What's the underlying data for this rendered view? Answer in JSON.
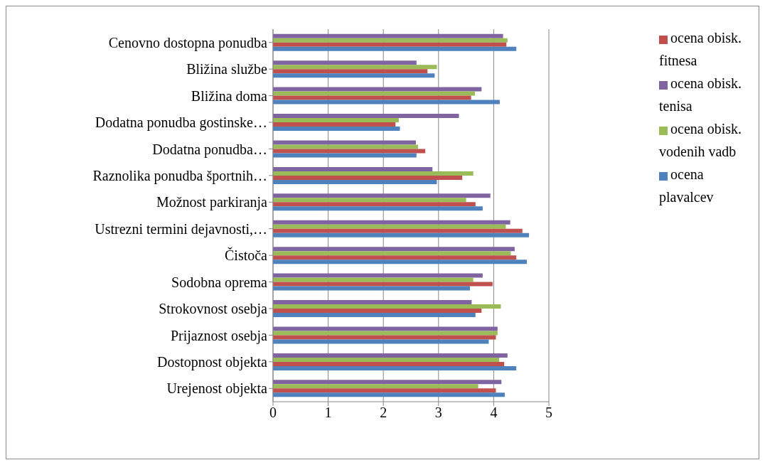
{
  "chart_data": {
    "type": "bar",
    "orientation": "horizontal",
    "categories": [
      "Cenovno dostopna ponudba",
      "Bližina službe",
      "Bližina doma",
      "Dodatna ponudba gostinske…",
      "Dodatna ponudba…",
      "Raznolika  ponudba športnih…",
      "Možnost parkiranja",
      "Ustrezni termini dejavnosti,…",
      "Čistoča",
      "Sodobna oprema",
      "Strokovnost osebja",
      "Prijaznost osebja",
      "Dostopnost objekta",
      "Urejenost objekta"
    ],
    "series": [
      {
        "name": "ocena obisk. tenisa",
        "color": "#8064a2",
        "values": [
          4.17,
          2.6,
          3.78,
          3.37,
          2.59,
          2.89,
          3.94,
          4.3,
          4.38,
          3.8,
          3.6,
          4.07,
          4.25,
          4.14
        ]
      },
      {
        "name": "ocena obisk. vodenih vadb",
        "color": "#9bbb59",
        "values": [
          4.25,
          2.97,
          3.66,
          2.28,
          2.63,
          3.63,
          3.5,
          4.22,
          4.31,
          3.63,
          4.13,
          4.07,
          4.1,
          3.72
        ]
      },
      {
        "name": "ocena obisk. fitnesa",
        "color": "#c0504d",
        "values": [
          4.23,
          2.8,
          3.59,
          2.22,
          2.76,
          3.43,
          3.67,
          4.52,
          4.41,
          3.98,
          3.78,
          4.04,
          4.19,
          4.04
        ]
      },
      {
        "name": "ocena plavalcev",
        "color": "#4f81bd",
        "values": [
          4.41,
          2.93,
          4.11,
          2.3,
          2.6,
          2.97,
          3.8,
          4.64,
          4.6,
          3.57,
          3.67,
          3.91,
          4.41,
          4.2
        ]
      }
    ],
    "xlim": [
      0,
      5
    ],
    "xticks": [
      0,
      1,
      2,
      3,
      4,
      5
    ],
    "grid": "x",
    "legend": "right"
  }
}
